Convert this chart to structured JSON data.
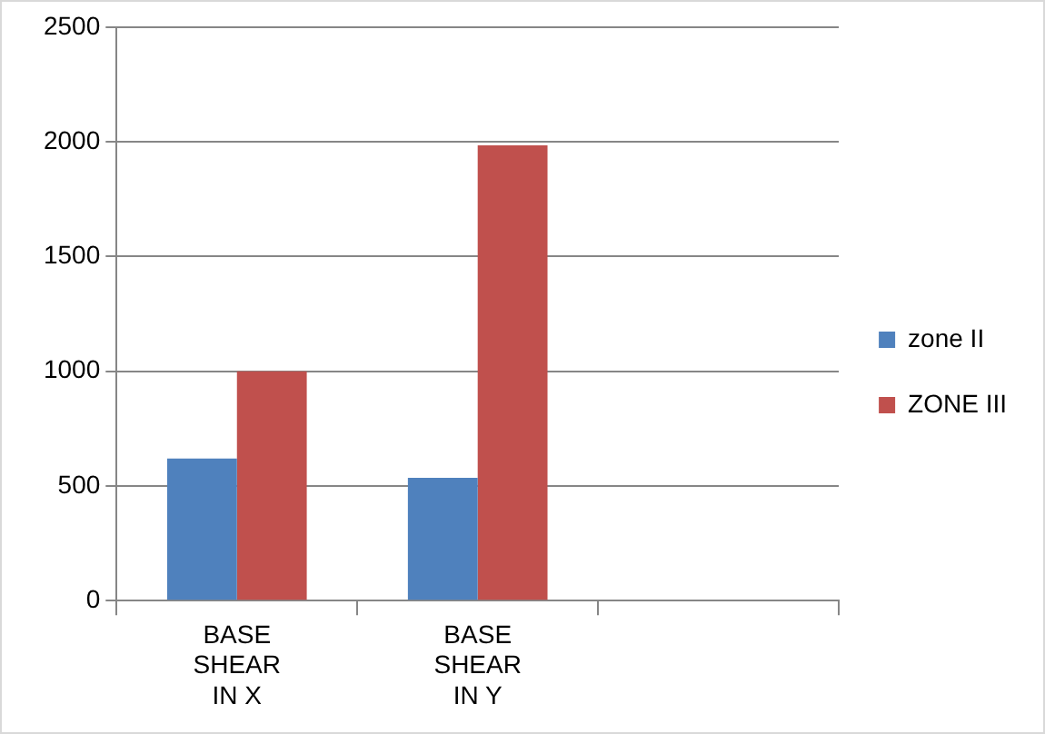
{
  "chart_data": {
    "type": "bar",
    "categories": [
      "BASE SHEAR IN X",
      "BASE SHEAR IN Y",
      null
    ],
    "series": [
      {
        "name": "zone II",
        "color": "#4f81bd",
        "values": [
          620,
          535,
          null
        ]
      },
      {
        "name": "ZONE III",
        "color": "#c0504d",
        "values": [
          1000,
          1985,
          null
        ]
      }
    ],
    "ylim": [
      0,
      2500
    ],
    "yticks": [
      0,
      500,
      1000,
      1500,
      2000,
      2500
    ],
    "grid": "y",
    "legend": "right"
  }
}
